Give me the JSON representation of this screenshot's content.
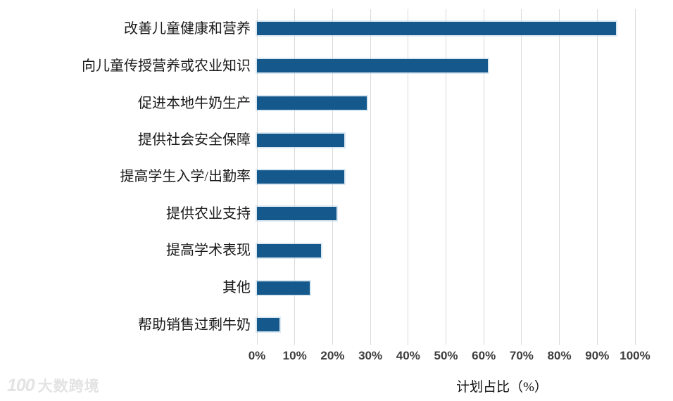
{
  "chart_data": {
    "type": "bar",
    "orientation": "horizontal",
    "title": "",
    "categories": [
      "改善儿童健康和营养",
      "向儿童传授营养或农业知识",
      "促进本地牛奶生产",
      "提供社会安全保障",
      "提高学生入学/出勤率",
      "提供农业支持",
      "提高学术表现",
      "其他",
      "帮助销售过剩牛奶"
    ],
    "values": [
      95,
      61,
      29,
      23,
      23,
      21,
      17,
      14,
      6
    ],
    "xlabel": "计划占比（%）",
    "ylabel": "",
    "xlim": [
      0,
      100
    ],
    "tick_labels": [
      "0%",
      "10%",
      "20%",
      "30%",
      "40%",
      "50%",
      "60%",
      "70%",
      "80%",
      "90%",
      "100%"
    ],
    "tick_values": [
      0,
      10,
      20,
      30,
      40,
      50,
      60,
      70,
      80,
      90,
      100
    ],
    "grid": "vertical",
    "legend_position": "none",
    "bar_color": "#15598c",
    "gridline_color": "#d9d9d9"
  },
  "watermark": {
    "logo": "100",
    "text": "大数跨境"
  }
}
